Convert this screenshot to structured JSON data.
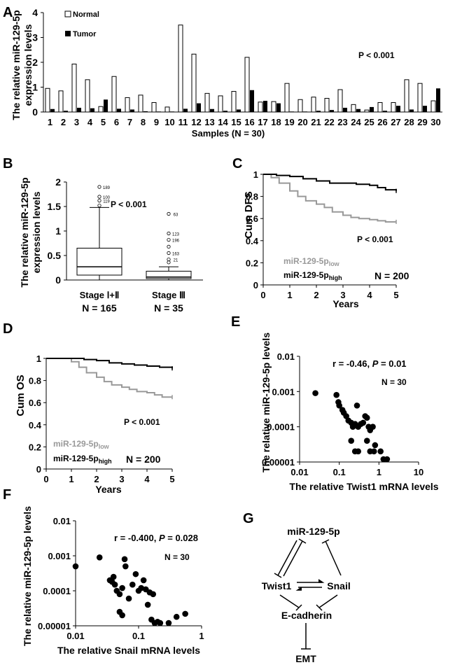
{
  "figure_title": "",
  "chart_data": [
    {
      "id": "A",
      "panel_label": "A",
      "type": "bar",
      "title": "",
      "ylabel_lines": [
        "The relative miR-129-5p",
        "expression levels"
      ],
      "xlabel": "Samples (N = 30)",
      "ylim": [
        0,
        4
      ],
      "yticks": [
        "0",
        "1",
        "2",
        "3",
        "4"
      ],
      "categories": [
        "1",
        "2",
        "3",
        "4",
        "5",
        "6",
        "7",
        "8",
        "9",
        "10",
        "11",
        "12",
        "13",
        "14",
        "15",
        "16",
        "17",
        "18",
        "19",
        "20",
        "21",
        "22",
        "23",
        "24",
        "25",
        "26",
        "27",
        "28",
        "29",
        "30"
      ],
      "series": [
        {
          "name": "Normal",
          "fill": "#ffffff",
          "values": [
            0.95,
            0.85,
            1.93,
            1.3,
            0.22,
            1.43,
            0.58,
            0.68,
            0.38,
            0.2,
            3.5,
            2.33,
            0.75,
            0.65,
            0.83,
            2.2,
            0.4,
            0.42,
            1.15,
            0.5,
            0.6,
            0.55,
            0.9,
            0.3,
            0.08,
            0.38,
            0.38,
            1.3,
            1.15,
            0.45
          ]
        },
        {
          "name": "Tumor",
          "fill": "#000000",
          "values": [
            0.12,
            0.05,
            0.17,
            0.15,
            0.5,
            0.13,
            0.1,
            0.03,
            0.02,
            0.02,
            0.13,
            0.35,
            0.12,
            0.05,
            0.1,
            0.88,
            0.45,
            0.35,
            0.02,
            0.02,
            0.05,
            0.08,
            0.17,
            0.12,
            0.2,
            0.05,
            0.25,
            0.1,
            0.25,
            0.95
          ]
        }
      ],
      "annotation": "P < 0.001"
    },
    {
      "id": "B",
      "panel_label": "B",
      "type": "box",
      "ylabel_lines": [
        "The relative miR-129-5p",
        "expression levels"
      ],
      "ylim": [
        0,
        2
      ],
      "yticks": [
        "0",
        "0.5",
        "1",
        "1.5",
        "2"
      ],
      "groups": [
        {
          "label": "Stage Ⅰ+Ⅱ",
          "n_label": "N = 165",
          "q1": 0.1,
          "median": 0.27,
          "q3": 0.65,
          "whisker_low": 0.0,
          "whisker_high": 1.48,
          "outliers": [
            {
              "value": 1.9,
              "label": "189"
            },
            {
              "value": 1.7,
              "label": "100"
            },
            {
              "value": 1.62,
              "label": "119"
            },
            {
              "value": 1.52,
              "label": ""
            }
          ]
        },
        {
          "label": "Stage Ⅲ",
          "n_label": "N = 35",
          "q1": 0.03,
          "median": 0.06,
          "q3": 0.18,
          "whisker_low": 0.0,
          "whisker_high": 0.27,
          "outliers": [
            {
              "value": 1.35,
              "label": "63"
            },
            {
              "value": 0.95,
              "label": "123"
            },
            {
              "value": 0.82,
              "label": "196"
            },
            {
              "value": 0.68,
              "label": ""
            },
            {
              "value": 0.55,
              "label": "163"
            },
            {
              "value": 0.42,
              "label": "21"
            },
            {
              "value": 0.36,
              "label": ""
            }
          ]
        }
      ],
      "annotation": "P < 0.001"
    },
    {
      "id": "C",
      "panel_label": "C",
      "type": "line",
      "ylabel": "Cum DFS",
      "xlabel": "Years",
      "xlim": [
        0,
        5
      ],
      "ylim": [
        0,
        1
      ],
      "xticks": [
        "0",
        "1",
        "2",
        "3",
        "4",
        "5"
      ],
      "yticks": [
        "0",
        "0.2",
        "0.4",
        "0.6",
        "0.8",
        "1"
      ],
      "series": [
        {
          "name": "miR-129-5p",
          "name_sub": "low",
          "color": "#999999",
          "x": [
            0,
            0.3,
            0.6,
            1,
            1.3,
            1.6,
            2,
            2.3,
            2.6,
            3,
            3.3,
            3.6,
            4,
            4.3,
            4.6,
            5
          ],
          "y": [
            1,
            0.97,
            0.92,
            0.85,
            0.8,
            0.76,
            0.73,
            0.7,
            0.66,
            0.63,
            0.61,
            0.6,
            0.59,
            0.58,
            0.57,
            0.57
          ]
        },
        {
          "name": "miR-129-5p",
          "name_sub": "high",
          "color": "#000000",
          "x": [
            0,
            0.5,
            1,
            1.5,
            2,
            2.5,
            3,
            3.5,
            4,
            4.3,
            4.6,
            5
          ],
          "y": [
            1,
            0.99,
            0.98,
            0.96,
            0.94,
            0.92,
            0.92,
            0.91,
            0.9,
            0.88,
            0.86,
            0.85
          ]
        }
      ],
      "annotation": "P < 0.001",
      "n_label": "N = 200"
    },
    {
      "id": "D",
      "panel_label": "D",
      "type": "line",
      "ylabel": "Cum OS",
      "xlabel": "Years",
      "xlim": [
        0,
        5
      ],
      "ylim": [
        0,
        1
      ],
      "xticks": [
        "0",
        "1",
        "2",
        "3",
        "4",
        "5"
      ],
      "yticks": [
        "0",
        "0.2",
        "0.4",
        "0.6",
        "0.8",
        "1"
      ],
      "series": [
        {
          "name": "miR-129-5p",
          "name_sub": "low",
          "color": "#999999",
          "x": [
            0,
            0.8,
            1,
            1.3,
            1.6,
            2,
            2.3,
            2.6,
            3,
            3.3,
            3.6,
            4,
            4.3,
            4.6,
            5
          ],
          "y": [
            1,
            1,
            0.97,
            0.92,
            0.87,
            0.83,
            0.79,
            0.76,
            0.74,
            0.72,
            0.7,
            0.69,
            0.67,
            0.65,
            0.65
          ]
        },
        {
          "name": "miR-129-5p",
          "name_sub": "high",
          "color": "#000000",
          "x": [
            0,
            1,
            1.5,
            2,
            2.5,
            3,
            3.5,
            4,
            4.5,
            5
          ],
          "y": [
            1,
            1,
            0.99,
            0.98,
            0.96,
            0.95,
            0.94,
            0.93,
            0.92,
            0.91
          ]
        }
      ],
      "annotation": "P < 0.001",
      "n_label": "N = 200"
    },
    {
      "id": "E",
      "panel_label": "E",
      "type": "scatter",
      "ylabel": "The relative miR-129-5p levels",
      "xlabel": "The relative Twist1 mRNA levels",
      "xscale": "log",
      "yscale": "log",
      "xlim": [
        0.01,
        10
      ],
      "ylim": [
        1e-05,
        0.01
      ],
      "xticks": [
        "0.01",
        "0.1",
        "1",
        "10"
      ],
      "yticks": [
        "0.00001",
        "0.0001",
        "0.001",
        "0.01"
      ],
      "points": [
        [
          0.025,
          0.0009
        ],
        [
          0.085,
          0.0008
        ],
        [
          0.095,
          0.0005
        ],
        [
          0.1,
          0.0004
        ],
        [
          0.12,
          0.0003
        ],
        [
          0.13,
          0.00025
        ],
        [
          0.15,
          0.0002
        ],
        [
          0.17,
          0.00015
        ],
        [
          0.2,
          0.00013
        ],
        [
          0.22,
          0.0001
        ],
        [
          0.25,
          0.00012
        ],
        [
          0.28,
          0.0004
        ],
        [
          0.3,
          0.0001
        ],
        [
          0.35,
          0.00012
        ],
        [
          0.4,
          0.00013
        ],
        [
          0.45,
          0.0002
        ],
        [
          0.5,
          0.00018
        ],
        [
          0.55,
          0.0001
        ],
        [
          0.6,
          8e-05
        ],
        [
          0.7,
          0.0001
        ],
        [
          0.5,
          4e-05
        ],
        [
          0.6,
          2e-05
        ],
        [
          0.75,
          2e-05
        ],
        [
          0.25,
          2e-05
        ],
        [
          0.3,
          2e-05
        ],
        [
          0.2,
          4e-05
        ],
        [
          0.8,
          3e-05
        ],
        [
          1.1,
          2e-05
        ],
        [
          1.3,
          1.2e-05
        ],
        [
          1.6,
          1.2e-05
        ]
      ],
      "annotation_r": "r = -0.46, ",
      "annotation_p": "P",
      "annotation_pval": " = 0.01",
      "n_label": "N = 30"
    },
    {
      "id": "F",
      "panel_label": "F",
      "type": "scatter",
      "ylabel": "The relative miR-129-5p levels",
      "xlabel": "The relative Snail mRNA levels",
      "xscale": "log",
      "yscale": "log",
      "xlim": [
        0.01,
        1
      ],
      "ylim": [
        1e-05,
        0.01
      ],
      "xticks": [
        "0.01",
        "0.1",
        "1"
      ],
      "yticks": [
        "0.00001",
        "0.0001",
        "0.001",
        "0.01"
      ],
      "points": [
        [
          0.01,
          0.0005
        ],
        [
          0.024,
          0.0009
        ],
        [
          0.035,
          0.0002
        ],
        [
          0.038,
          0.00018
        ],
        [
          0.04,
          0.00025
        ],
        [
          0.042,
          0.00015
        ],
        [
          0.045,
          0.0001
        ],
        [
          0.05,
          8e-05
        ],
        [
          0.055,
          0.00012
        ],
        [
          0.06,
          0.0008
        ],
        [
          0.062,
          0.0005
        ],
        [
          0.07,
          6e-05
        ],
        [
          0.08,
          0.00015
        ],
        [
          0.09,
          0.0003
        ],
        [
          0.1,
          0.0001
        ],
        [
          0.11,
          0.00012
        ],
        [
          0.12,
          0.0002
        ],
        [
          0.13,
          0.00011
        ],
        [
          0.15,
          9e-05
        ],
        [
          0.17,
          8e-05
        ],
        [
          0.05,
          2.5e-05
        ],
        [
          0.055,
          2e-05
        ],
        [
          0.14,
          4e-05
        ],
        [
          0.16,
          1.5e-05
        ],
        [
          0.18,
          1.2e-05
        ],
        [
          0.2,
          1.3e-05
        ],
        [
          0.22,
          1.2e-05
        ],
        [
          0.3,
          1.2e-05
        ],
        [
          0.4,
          1.8e-05
        ],
        [
          0.55,
          2.2e-05
        ]
      ],
      "annotation_r": "r = -0.400, ",
      "annotation_p": "P",
      "annotation_pval": " = 0.028",
      "n_label": "N = 30"
    }
  ],
  "diagram_g": {
    "panel_label": "G",
    "nodes": {
      "mir": "miR-129-5p",
      "twist": "Twist1",
      "snail": "Snail",
      "ecad": "E-cadherin",
      "emt": "EMT"
    }
  }
}
